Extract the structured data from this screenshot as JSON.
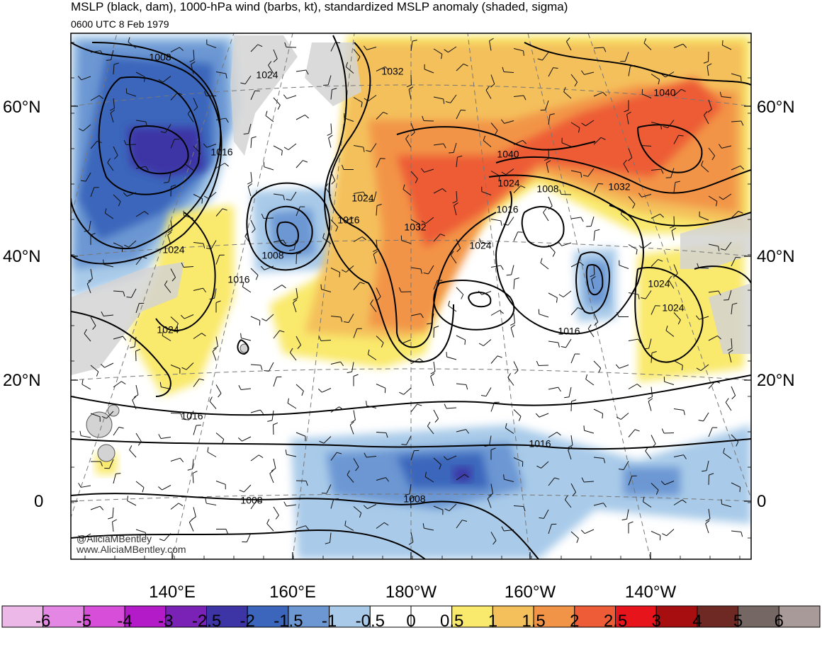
{
  "title": "MSLP (black, dam), 1000-hPa wind (barbs, kt), standardized MSLP anomaly (shaded, sigma)",
  "subtitle": "0600 UTC 8 Feb 1979",
  "lat_labels": [
    "60°N",
    "40°N",
    "20°N",
    "0"
  ],
  "lon_labels": [
    "140°E",
    "160°E",
    "180°W",
    "160°W",
    "140°W"
  ],
  "credit": [
    "@AliciaMBentley",
    "www.AliciaMBentley.com"
  ],
  "colorbar": {
    "labels": [
      "-6",
      "-5",
      "-4",
      "-3",
      "-2.5",
      "-2",
      "-1.5",
      "-1",
      "-0.5",
      "0",
      "0.5",
      "1",
      "1.5",
      "2",
      "2.5",
      "3",
      "4",
      "5",
      "6"
    ],
    "colors": [
      "#ebb8e8",
      "#e487e4",
      "#d74fd9",
      "#b31ac8",
      "#7a22b6",
      "#3d35a6",
      "#3b66bb",
      "#6c97d3",
      "#a9cbe9",
      "#ffffff",
      "#ffffff",
      "#f9e96c",
      "#f4c05b",
      "#f29447",
      "#ed5c36",
      "#e8141c",
      "#a70e0f",
      "#6f2925",
      "#756763",
      "#a89a98"
    ]
  },
  "contour_labels": [
    {
      "text": "1008",
      "region": "nw"
    },
    {
      "text": "1024",
      "region": "n"
    },
    {
      "text": "1032",
      "region": "n"
    },
    {
      "text": "1040",
      "region": "ne"
    },
    {
      "text": "1016",
      "region": "nw"
    },
    {
      "text": "1040",
      "region": "c"
    },
    {
      "text": "1024",
      "region": "c"
    },
    {
      "text": "1008",
      "region": "c"
    },
    {
      "text": "1032",
      "region": "ne"
    },
    {
      "text": "1024",
      "region": "c"
    },
    {
      "text": "1016",
      "region": "c"
    },
    {
      "text": "1016",
      "region": "c"
    },
    {
      "text": "1032",
      "region": "c"
    },
    {
      "text": "1024",
      "region": "c"
    },
    {
      "text": "1024",
      "region": "w"
    },
    {
      "text": "1008",
      "region": "w"
    },
    {
      "text": "1016",
      "region": "w"
    },
    {
      "text": "1024",
      "region": "e"
    },
    {
      "text": "1024",
      "region": "e"
    },
    {
      "text": "1024",
      "region": "w"
    },
    {
      "text": "1016",
      "region": "c"
    },
    {
      "text": "1016",
      "region": "w"
    },
    {
      "text": "1016",
      "region": "s"
    },
    {
      "text": "1008",
      "region": "sw"
    },
    {
      "text": "1008",
      "region": "s"
    }
  ],
  "map": {
    "projection": "conic",
    "lat_range": [
      "0",
      "70°N"
    ],
    "lon_range": [
      "120°E",
      "120°W"
    ],
    "land_color": "#d3d3d3",
    "coastline_color": "#555555"
  }
}
